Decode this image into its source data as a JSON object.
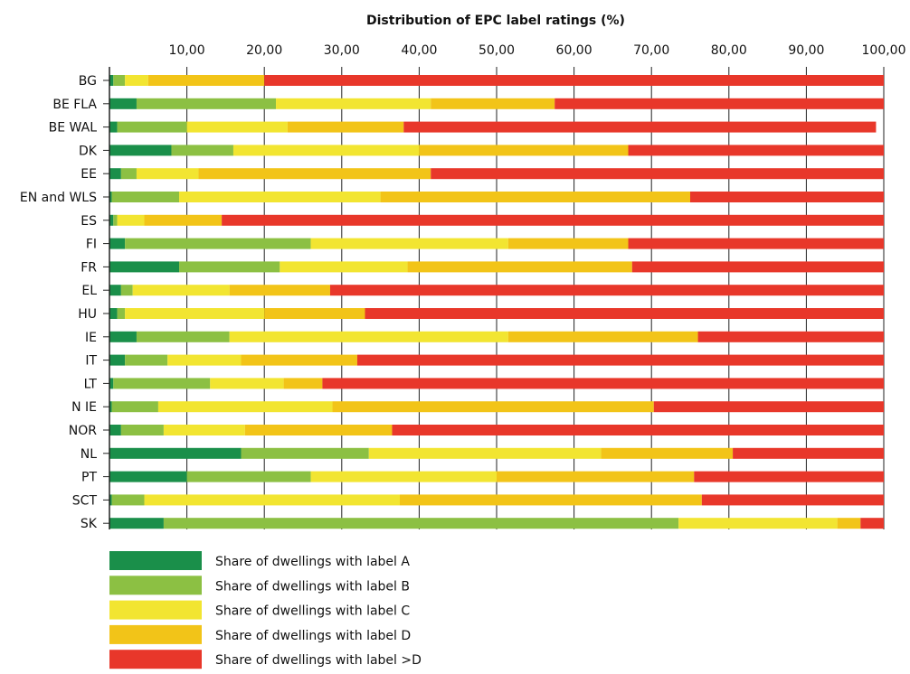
{
  "chart_data": {
    "type": "bar",
    "orientation": "horizontal",
    "stacked": true,
    "title": "Distribution of EPC label ratings (%)",
    "xlim": [
      0,
      100
    ],
    "xticks": [
      "10,00",
      "20,00",
      "30,00",
      "40,00",
      "50,00",
      "60,00",
      "70,00",
      "80,00",
      "90,00",
      "100,00"
    ],
    "categories": [
      "BG",
      "BE FLA",
      "BE WAL",
      "DK",
      "EE",
      "EN and WLS",
      "ES",
      "FI",
      "FR",
      "EL",
      "HU",
      "IE",
      "IT",
      "LT",
      "N IE",
      "NOR",
      "NL",
      "PT",
      "SCT",
      "SK"
    ],
    "series": [
      {
        "name": "Share of dwellings with label A",
        "color": "#1a8f4a",
        "values": [
          0.5,
          3.5,
          1.0,
          8.0,
          1.5,
          0.3,
          0.5,
          2.0,
          9.0,
          1.5,
          1.0,
          3.5,
          2.0,
          0.5,
          0.3,
          1.5,
          17.0,
          10.0,
          0.3,
          7.0
        ]
      },
      {
        "name": "Share of dwellings with label B",
        "color": "#8cc043",
        "values": [
          1.5,
          18.0,
          9.0,
          8.0,
          2.0,
          8.7,
          0.5,
          24.0,
          13.0,
          1.5,
          1.0,
          12.0,
          5.5,
          12.5,
          6.0,
          5.5,
          16.5,
          16.0,
          4.2,
          66.5
        ]
      },
      {
        "name": "Share of dwellings with label C",
        "color": "#f2e531",
        "values": [
          3.0,
          20.0,
          13.0,
          24.0,
          8.0,
          26.0,
          3.5,
          25.5,
          16.5,
          12.5,
          18.0,
          36.0,
          9.5,
          9.5,
          22.5,
          10.5,
          30.0,
          24.0,
          33.0,
          20.5
        ]
      },
      {
        "name": "Share of dwellings with label D",
        "color": "#f2c418",
        "values": [
          15.0,
          16.0,
          15.0,
          27.0,
          30.0,
          40.0,
          10.0,
          15.5,
          29.0,
          13.0,
          13.0,
          24.5,
          15.0,
          5.0,
          41.5,
          19.0,
          17.0,
          25.5,
          39.0,
          3.0
        ]
      },
      {
        "name": "Share of dwellings with label >D",
        "color": "#e8372a",
        "values": [
          80.0,
          42.5,
          61.0,
          33.0,
          58.5,
          25.0,
          85.5,
          33.0,
          32.5,
          71.5,
          67.0,
          24.0,
          68.0,
          72.5,
          29.7,
          63.5,
          19.5,
          24.5,
          23.5,
          3.0
        ]
      }
    ],
    "grid": true,
    "legend_position": "bottom-left"
  }
}
